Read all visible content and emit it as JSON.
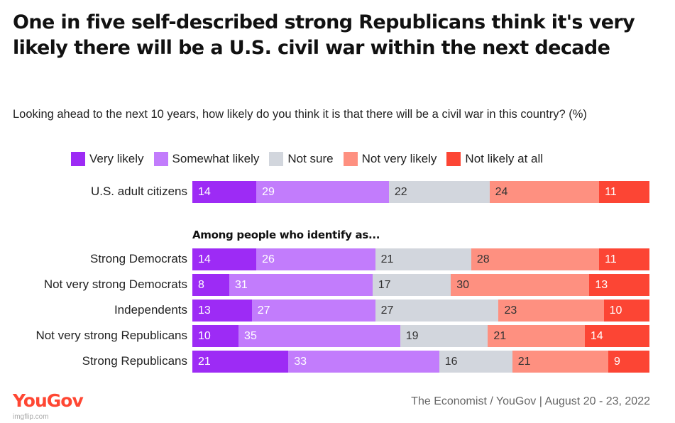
{
  "title": "One in five self-described strong Republicans think it's very likely there will be a U.S. civil war within the next decade",
  "subtitle": "Looking ahead to the next 10 years, how likely do you think it is that there will be a civil war in this country? (%)",
  "group_header": "Among people who identify as...",
  "source": "The Economist / YouGov | August 20 - 23, 2022",
  "logo": "YouGov",
  "watermark": "imgflip.com",
  "chart_data": {
    "type": "bar",
    "orientation": "horizontal",
    "stacked": true,
    "categories": [
      "U.S. adult citizens",
      "Strong Democrats",
      "Not very strong Democrats",
      "Independents",
      "Not very strong Republicans",
      "Strong Republicans"
    ],
    "series": [
      {
        "name": "Very likely",
        "color": "#9d2bf5",
        "values": [
          14,
          14,
          8,
          13,
          10,
          21
        ]
      },
      {
        "name": "Somewhat likely",
        "color": "#c27cfc",
        "values": [
          29,
          26,
          31,
          27,
          35,
          33
        ]
      },
      {
        "name": "Not sure",
        "color": "#d2d6dd",
        "values": [
          22,
          21,
          17,
          27,
          19,
          16
        ]
      },
      {
        "name": "Not very likely",
        "color": "#fe9080",
        "values": [
          24,
          28,
          30,
          23,
          21,
          21
        ]
      },
      {
        "name": "Not likely at all",
        "color": "#fc4534",
        "values": [
          11,
          11,
          13,
          10,
          14,
          9
        ]
      }
    ],
    "unit": "%",
    "legend_position": "top"
  }
}
